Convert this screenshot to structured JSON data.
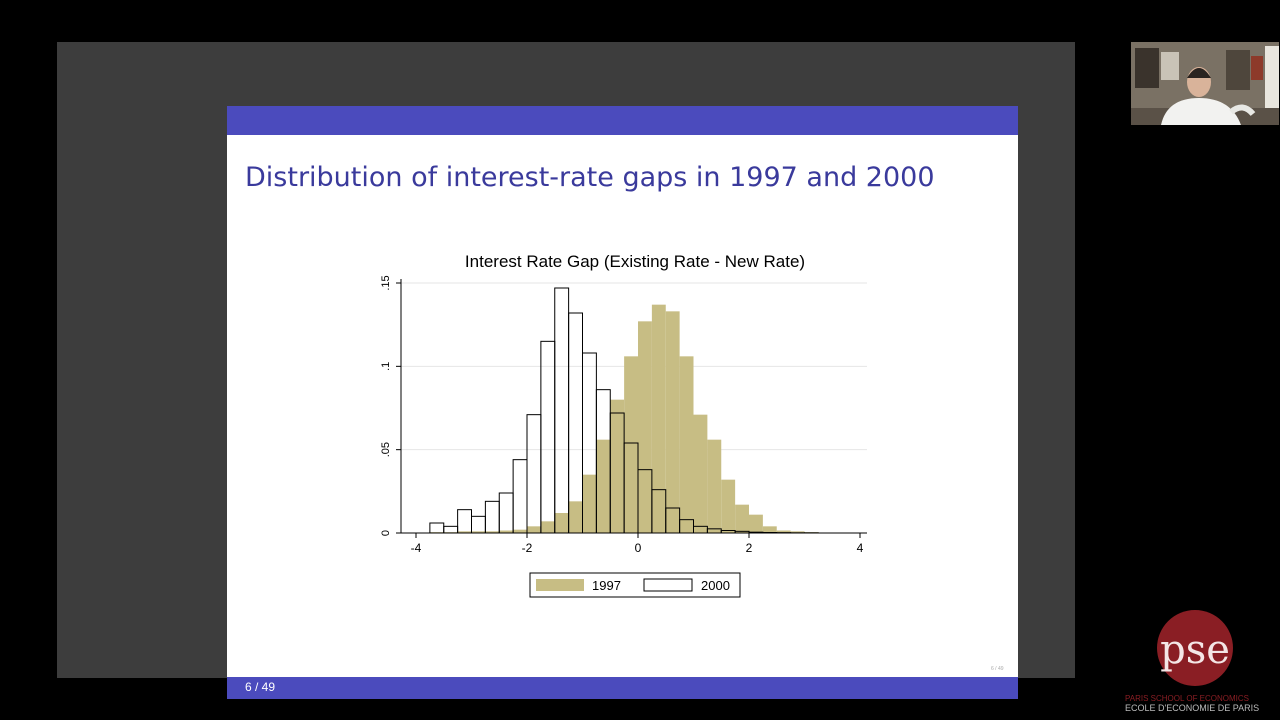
{
  "slide": {
    "title": "Distribution of interest-rate gaps in 1997 and 2000",
    "page_number": "6 / 49",
    "tiny_page_mark": "6 / 49"
  },
  "colors": {
    "bar_1997": "#c7bd84",
    "bar_2000": "#ffffff",
    "outline": "#000000",
    "header_bar": "#4b4bbd",
    "title_text": "#3a3a9c"
  },
  "chart_data": {
    "type": "bar",
    "title": "Interest Rate Gap (Existing Rate - New Rate)",
    "xlabel": "",
    "ylabel": "",
    "xlim": [
      -4,
      4
    ],
    "ylim": [
      0,
      0.15
    ],
    "x_ticks": [
      -4,
      -2,
      0,
      2,
      4
    ],
    "x_tick_labels": [
      "-4",
      "-2",
      "0",
      "2",
      "4"
    ],
    "y_ticks": [
      0,
      0.05,
      0.1,
      0.15
    ],
    "y_tick_labels": [
      "0",
      ".05",
      ".1",
      ".15"
    ],
    "bin_width": 0.25,
    "legend_position": "bottom",
    "series": [
      {
        "name": "1997",
        "bins_start": [
          -3.75,
          -3.5,
          -3.25,
          -3.0,
          -2.75,
          -2.5,
          -2.25,
          -2.0,
          -1.75,
          -1.5,
          -1.25,
          -1.0,
          -0.75,
          -0.5,
          -0.25,
          0.0,
          0.25,
          0.5,
          0.75,
          1.0,
          1.25,
          1.5,
          1.75,
          2.0,
          2.25,
          2.5,
          2.75,
          3.0
        ],
        "values": [
          0.0005,
          0.0005,
          0.001,
          0.001,
          0.001,
          0.0015,
          0.002,
          0.004,
          0.007,
          0.012,
          0.019,
          0.035,
          0.056,
          0.08,
          0.106,
          0.127,
          0.137,
          0.133,
          0.106,
          0.071,
          0.056,
          0.032,
          0.017,
          0.011,
          0.004,
          0.0015,
          0.001,
          0.0005
        ]
      },
      {
        "name": "2000",
        "bins_start": [
          -3.75,
          -3.5,
          -3.25,
          -3.0,
          -2.75,
          -2.5,
          -2.25,
          -2.0,
          -1.75,
          -1.5,
          -1.25,
          -1.0,
          -0.75,
          -0.5,
          -0.25,
          0.0,
          0.25,
          0.5,
          0.75,
          1.0,
          1.25,
          1.5,
          1.75,
          2.0,
          2.25,
          2.5,
          2.75,
          3.0
        ],
        "values": [
          0.006,
          0.004,
          0.014,
          0.01,
          0.019,
          0.024,
          0.044,
          0.071,
          0.115,
          0.147,
          0.132,
          0.108,
          0.086,
          0.072,
          0.054,
          0.038,
          0.026,
          0.015,
          0.008,
          0.004,
          0.0025,
          0.0015,
          0.001,
          0.0005,
          0.0003,
          0.0002,
          0.0001,
          0.0001
        ]
      }
    ],
    "legend": [
      "1997",
      "2000"
    ]
  },
  "branding": {
    "logo_letters": "pse",
    "line1": "PARIS SCHOOL OF ECONOMICS",
    "line2": "ECOLE D'ECONOMIE DE PARIS"
  }
}
